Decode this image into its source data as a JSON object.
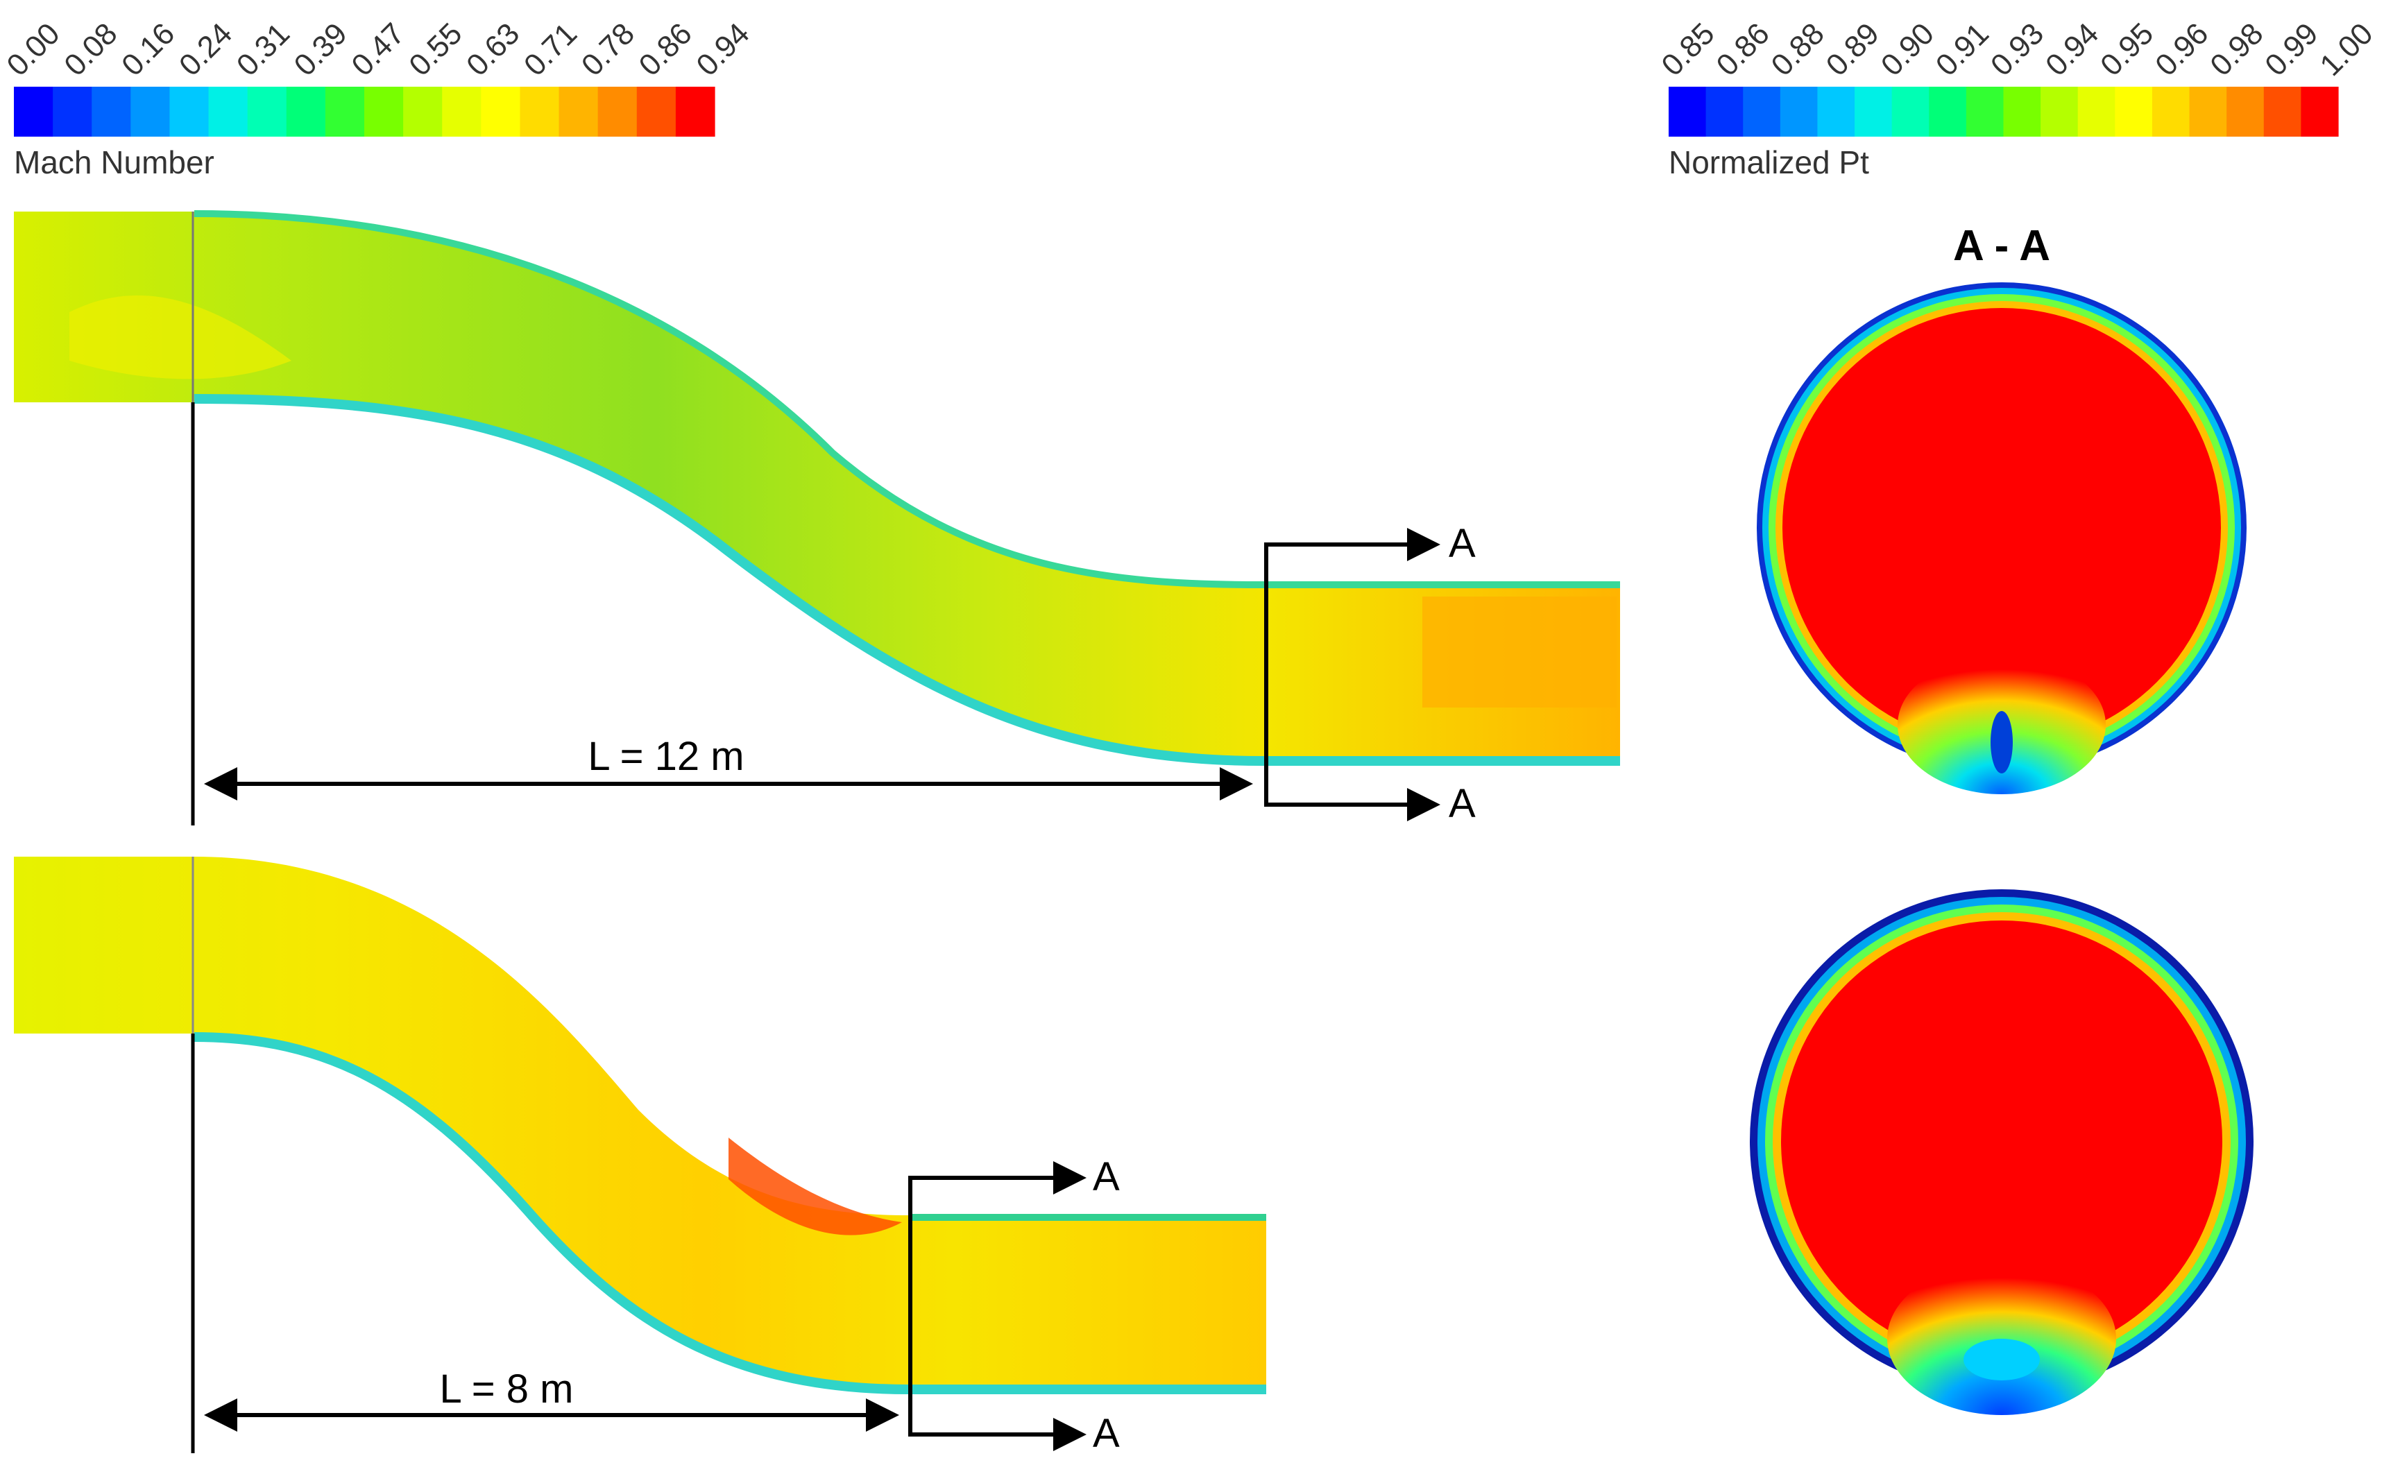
{
  "colors": {
    "scale": [
      "#0000ff",
      "#0032ff",
      "#0064ff",
      "#0096ff",
      "#00c8ff",
      "#00f0e6",
      "#00ffb4",
      "#00ff78",
      "#32ff32",
      "#78ff00",
      "#b4ff00",
      "#e6ff00",
      "#ffff00",
      "#ffdc00",
      "#ffb400",
      "#ff8c00",
      "#ff5000",
      "#ff0000"
    ],
    "mach_background": "#a8e61e",
    "outline": "#000000"
  },
  "mach_legend": {
    "title": "Mach Number",
    "ticks": [
      "0.00",
      "0.08",
      "0.16",
      "0.24",
      "0.31",
      "0.39",
      "0.47",
      "0.55",
      "0.63",
      "0.71",
      "0.78",
      "0.86",
      "0.94"
    ]
  },
  "pt_legend": {
    "title": "Normalized Pt",
    "ticks": [
      "0.85",
      "0.86",
      "0.88",
      "0.89",
      "0.90",
      "0.91",
      "0.93",
      "0.94",
      "0.95",
      "0.96",
      "0.98",
      "0.99",
      "1.00"
    ]
  },
  "section_title": "A - A",
  "duct_long": {
    "length_label": "L = 12 m",
    "section_mark_top": "A",
    "section_mark_bottom": "A"
  },
  "duct_short": {
    "length_label": "L = 8 m",
    "section_mark_top": "A",
    "section_mark_bottom": "A"
  },
  "icons": {
    "arrow": "arrow-right-icon",
    "dimension": "double-arrow-icon"
  }
}
